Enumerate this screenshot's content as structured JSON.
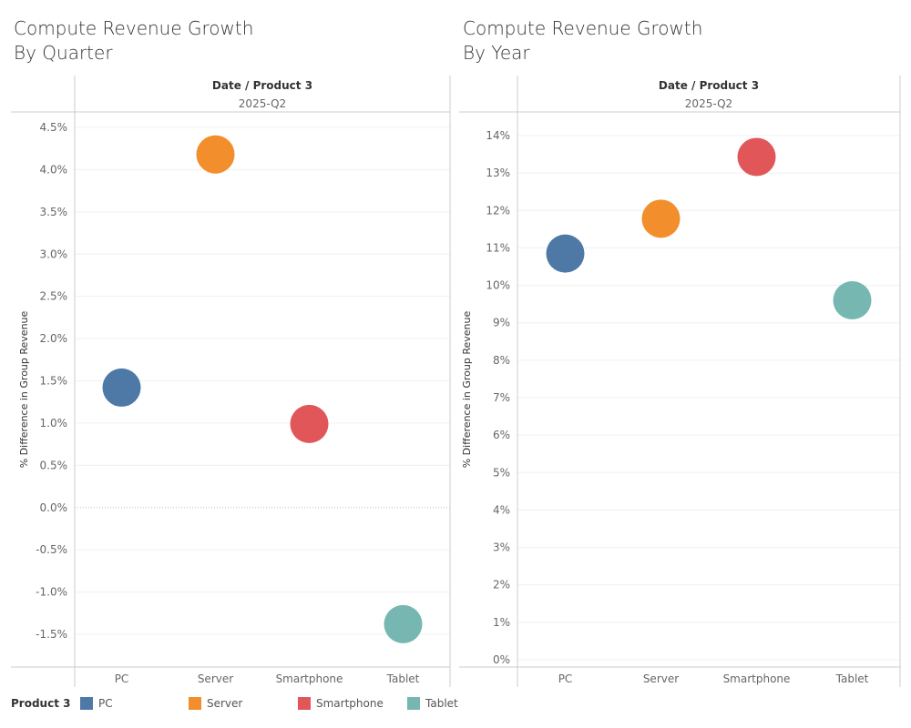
{
  "legend": {
    "title": "Product 3",
    "items": [
      {
        "label": "PC",
        "color": "#4e79a7"
      },
      {
        "label": "Server",
        "color": "#f28e2b"
      },
      {
        "label": "Smartphone",
        "color": "#e15759"
      },
      {
        "label": "Tablet",
        "color": "#76b7b2"
      }
    ]
  },
  "chart_data": [
    {
      "type": "scatter",
      "title_line1": "Compute Revenue Growth",
      "title_line2": "By Quarter",
      "header": "Date / Product 3",
      "subheader": "2025-Q2",
      "ylabel": "% Difference in Group Revenue",
      "categories": [
        "PC",
        "Server",
        "Smartphone",
        "Tablet"
      ],
      "values": [
        1.42,
        4.18,
        0.99,
        -1.38
      ],
      "ylim": [
        -1.8,
        4.7
      ],
      "yticks": [
        -1.5,
        -1.0,
        -0.5,
        0.0,
        0.5,
        1.0,
        1.5,
        2.0,
        2.5,
        3.0,
        3.5,
        4.0,
        4.5
      ],
      "ytick_labels": [
        "-1.5%",
        "-1.0%",
        "-0.5%",
        "0.0%",
        "0.5%",
        "1.0%",
        "1.5%",
        "2.0%",
        "2.5%",
        "3.0%",
        "3.5%",
        "4.0%",
        "4.5%"
      ],
      "grid": true
    },
    {
      "type": "scatter",
      "title_line1": "Compute Revenue Growth",
      "title_line2": "By Year",
      "header": "Date / Product 3",
      "subheader": "2025-Q2",
      "ylabel": "% Difference in Group Revenue",
      "categories": [
        "PC",
        "Server",
        "Smartphone",
        "Tablet"
      ],
      "values": [
        10.85,
        11.78,
        13.43,
        9.6
      ],
      "ylim": [
        -0.2,
        14.4
      ],
      "yticks": [
        0,
        1,
        2,
        3,
        4,
        5,
        6,
        7,
        8,
        9,
        10,
        11,
        12,
        13,
        14
      ],
      "ytick_labels": [
        "0%",
        "1%",
        "2%",
        "3%",
        "4%",
        "5%",
        "6%",
        "7%",
        "8%",
        "9%",
        "10%",
        "11%",
        "12%",
        "13%",
        "14%"
      ],
      "grid": true
    }
  ]
}
